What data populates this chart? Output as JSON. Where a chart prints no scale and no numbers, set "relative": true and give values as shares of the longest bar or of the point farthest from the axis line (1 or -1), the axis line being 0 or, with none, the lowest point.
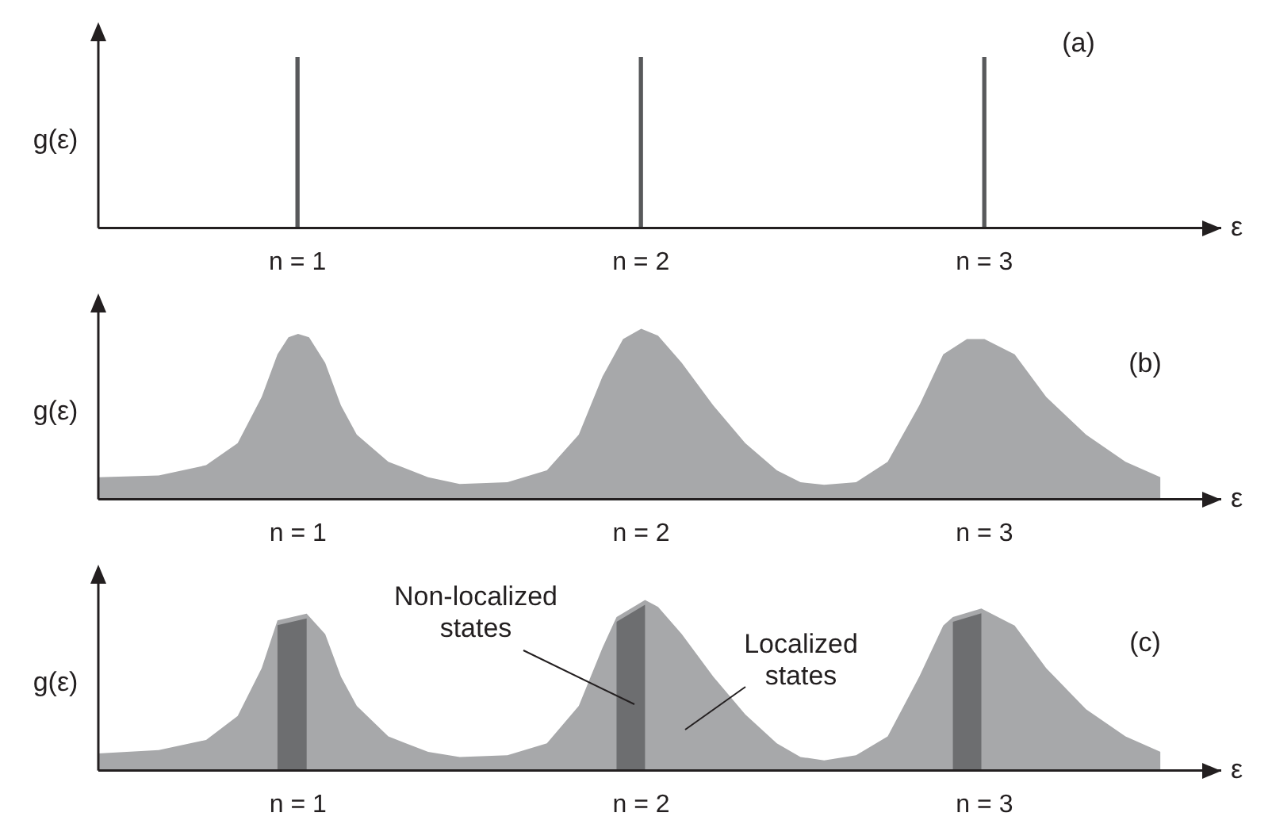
{
  "chart_data": [
    {
      "type": "bar",
      "x": [
        1,
        2,
        3
      ],
      "values": [
        1,
        1,
        1
      ],
      "relative": true,
      "color": "#58595b",
      "xlabel": "ε",
      "ylabel": "g(ε)",
      "xlim": [
        0.42,
        3.69
      ],
      "xticks": [
        {
          "value": 1,
          "label": "n = 1"
        },
        {
          "value": 2,
          "label": "n = 2"
        },
        {
          "value": 3,
          "label": "n = 3"
        }
      ],
      "annotations": [
        "(a)"
      ]
    },
    {
      "type": "area",
      "x": [
        0.418,
        0.594,
        0.732,
        0.824,
        0.894,
        0.94,
        0.972,
        1.0,
        1.032,
        1.079,
        1.125,
        1.171,
        1.263,
        1.379,
        1.471,
        1.61,
        1.725,
        1.818,
        1.887,
        1.947,
        2.0,
        2.049,
        2.118,
        2.21,
        2.303,
        2.395,
        2.464,
        2.533,
        2.626,
        2.718,
        2.81,
        2.88,
        2.949,
        3.0,
        3.088,
        3.18,
        3.296,
        3.411,
        3.513
      ],
      "values": [
        0.13,
        0.14,
        0.2,
        0.33,
        0.6,
        0.85,
        0.95,
        0.97,
        0.95,
        0.8,
        0.55,
        0.38,
        0.22,
        0.13,
        0.09,
        0.1,
        0.17,
        0.38,
        0.72,
        0.94,
        1,
        0.96,
        0.8,
        0.55,
        0.33,
        0.17,
        0.1,
        0.085,
        0.1,
        0.22,
        0.55,
        0.85,
        0.94,
        0.94,
        0.85,
        0.6,
        0.38,
        0.22,
        0.13
      ],
      "relative": true,
      "color": "#a7a8aa",
      "xlabel": "ε",
      "ylabel": "g(ε)",
      "xlim": [
        0.418,
        3.69
      ],
      "xticks": [
        {
          "value": 1,
          "label": "n = 1"
        },
        {
          "value": 2,
          "label": "n = 2"
        },
        {
          "value": 3,
          "label": "n = 3"
        }
      ],
      "annotations": [
        "(b)"
      ]
    },
    {
      "type": "area",
      "x": [
        0.418,
        0.594,
        0.732,
        0.824,
        0.894,
        0.94,
        1.025,
        1.079,
        1.125,
        1.171,
        1.263,
        1.379,
        1.471,
        1.61,
        1.725,
        1.818,
        1.887,
        1.928,
        2.011,
        2.049,
        2.118,
        2.21,
        2.303,
        2.395,
        2.464,
        2.533,
        2.626,
        2.718,
        2.81,
        2.88,
        2.908,
        2.991,
        3.088,
        3.18,
        3.296,
        3.411,
        3.513
      ],
      "values": [
        0.1,
        0.12,
        0.18,
        0.32,
        0.6,
        0.88,
        0.92,
        0.8,
        0.55,
        0.38,
        0.2,
        0.11,
        0.08,
        0.09,
        0.16,
        0.38,
        0.72,
        0.9,
        1,
        0.96,
        0.8,
        0.55,
        0.33,
        0.16,
        0.08,
        0.06,
        0.09,
        0.2,
        0.55,
        0.85,
        0.9,
        0.95,
        0.85,
        0.6,
        0.36,
        0.2,
        0.11
      ],
      "relative": true,
      "color": "#a7a8aa",
      "xlabel": "ε",
      "ylabel": "g(ε)",
      "xlim": [
        0.418,
        3.69
      ],
      "xticks": [
        {
          "value": 1,
          "label": "n = 1"
        },
        {
          "value": 2,
          "label": "n = 2"
        },
        {
          "value": 3,
          "label": "n = 3"
        }
      ],
      "bands": [
        {
          "axis": "x",
          "from": 0.94,
          "to": 1.025,
          "color": "#6d6e70"
        },
        {
          "axis": "x",
          "from": 1.928,
          "to": 2.011,
          "color": "#6d6e70"
        },
        {
          "axis": "x",
          "from": 2.908,
          "to": 2.991,
          "color": "#6d6e70"
        }
      ],
      "annotations": [
        "(c)",
        "Non-localized states",
        "Localized states"
      ]
    }
  ]
}
